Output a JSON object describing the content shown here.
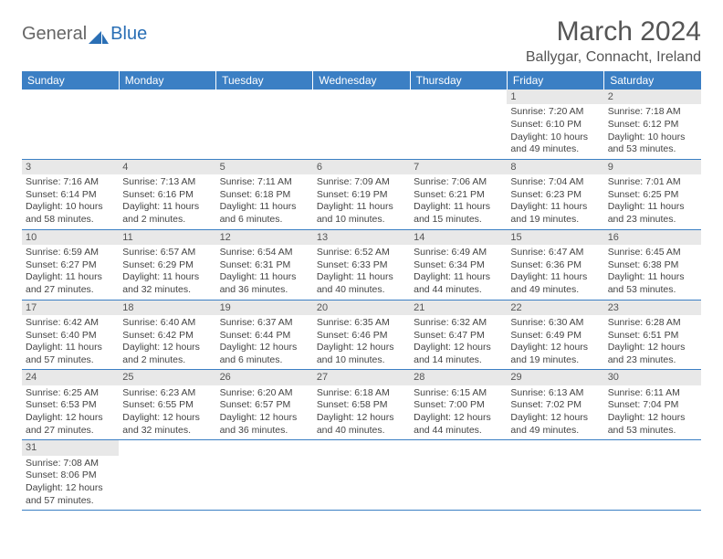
{
  "logo": {
    "part1": "General",
    "part2": "Blue"
  },
  "title": "March 2024",
  "location": "Ballygar, Connacht, Ireland",
  "colors": {
    "header_bg": "#3b7fc4",
    "header_text": "#ffffff",
    "daynum_bg": "#e8e8e8",
    "border": "#3b7fc4",
    "logo_blue": "#2a6fb5",
    "text": "#444444"
  },
  "weekdays": [
    "Sunday",
    "Monday",
    "Tuesday",
    "Wednesday",
    "Thursday",
    "Friday",
    "Saturday"
  ],
  "weeks": [
    [
      null,
      null,
      null,
      null,
      null,
      {
        "n": "1",
        "sr": "Sunrise: 7:20 AM",
        "ss": "Sunset: 6:10 PM",
        "d1": "Daylight: 10 hours",
        "d2": "and 49 minutes."
      },
      {
        "n": "2",
        "sr": "Sunrise: 7:18 AM",
        "ss": "Sunset: 6:12 PM",
        "d1": "Daylight: 10 hours",
        "d2": "and 53 minutes."
      }
    ],
    [
      {
        "n": "3",
        "sr": "Sunrise: 7:16 AM",
        "ss": "Sunset: 6:14 PM",
        "d1": "Daylight: 10 hours",
        "d2": "and 58 minutes."
      },
      {
        "n": "4",
        "sr": "Sunrise: 7:13 AM",
        "ss": "Sunset: 6:16 PM",
        "d1": "Daylight: 11 hours",
        "d2": "and 2 minutes."
      },
      {
        "n": "5",
        "sr": "Sunrise: 7:11 AM",
        "ss": "Sunset: 6:18 PM",
        "d1": "Daylight: 11 hours",
        "d2": "and 6 minutes."
      },
      {
        "n": "6",
        "sr": "Sunrise: 7:09 AM",
        "ss": "Sunset: 6:19 PM",
        "d1": "Daylight: 11 hours",
        "d2": "and 10 minutes."
      },
      {
        "n": "7",
        "sr": "Sunrise: 7:06 AM",
        "ss": "Sunset: 6:21 PM",
        "d1": "Daylight: 11 hours",
        "d2": "and 15 minutes."
      },
      {
        "n": "8",
        "sr": "Sunrise: 7:04 AM",
        "ss": "Sunset: 6:23 PM",
        "d1": "Daylight: 11 hours",
        "d2": "and 19 minutes."
      },
      {
        "n": "9",
        "sr": "Sunrise: 7:01 AM",
        "ss": "Sunset: 6:25 PM",
        "d1": "Daylight: 11 hours",
        "d2": "and 23 minutes."
      }
    ],
    [
      {
        "n": "10",
        "sr": "Sunrise: 6:59 AM",
        "ss": "Sunset: 6:27 PM",
        "d1": "Daylight: 11 hours",
        "d2": "and 27 minutes."
      },
      {
        "n": "11",
        "sr": "Sunrise: 6:57 AM",
        "ss": "Sunset: 6:29 PM",
        "d1": "Daylight: 11 hours",
        "d2": "and 32 minutes."
      },
      {
        "n": "12",
        "sr": "Sunrise: 6:54 AM",
        "ss": "Sunset: 6:31 PM",
        "d1": "Daylight: 11 hours",
        "d2": "and 36 minutes."
      },
      {
        "n": "13",
        "sr": "Sunrise: 6:52 AM",
        "ss": "Sunset: 6:33 PM",
        "d1": "Daylight: 11 hours",
        "d2": "and 40 minutes."
      },
      {
        "n": "14",
        "sr": "Sunrise: 6:49 AM",
        "ss": "Sunset: 6:34 PM",
        "d1": "Daylight: 11 hours",
        "d2": "and 44 minutes."
      },
      {
        "n": "15",
        "sr": "Sunrise: 6:47 AM",
        "ss": "Sunset: 6:36 PM",
        "d1": "Daylight: 11 hours",
        "d2": "and 49 minutes."
      },
      {
        "n": "16",
        "sr": "Sunrise: 6:45 AM",
        "ss": "Sunset: 6:38 PM",
        "d1": "Daylight: 11 hours",
        "d2": "and 53 minutes."
      }
    ],
    [
      {
        "n": "17",
        "sr": "Sunrise: 6:42 AM",
        "ss": "Sunset: 6:40 PM",
        "d1": "Daylight: 11 hours",
        "d2": "and 57 minutes."
      },
      {
        "n": "18",
        "sr": "Sunrise: 6:40 AM",
        "ss": "Sunset: 6:42 PM",
        "d1": "Daylight: 12 hours",
        "d2": "and 2 minutes."
      },
      {
        "n": "19",
        "sr": "Sunrise: 6:37 AM",
        "ss": "Sunset: 6:44 PM",
        "d1": "Daylight: 12 hours",
        "d2": "and 6 minutes."
      },
      {
        "n": "20",
        "sr": "Sunrise: 6:35 AM",
        "ss": "Sunset: 6:46 PM",
        "d1": "Daylight: 12 hours",
        "d2": "and 10 minutes."
      },
      {
        "n": "21",
        "sr": "Sunrise: 6:32 AM",
        "ss": "Sunset: 6:47 PM",
        "d1": "Daylight: 12 hours",
        "d2": "and 14 minutes."
      },
      {
        "n": "22",
        "sr": "Sunrise: 6:30 AM",
        "ss": "Sunset: 6:49 PM",
        "d1": "Daylight: 12 hours",
        "d2": "and 19 minutes."
      },
      {
        "n": "23",
        "sr": "Sunrise: 6:28 AM",
        "ss": "Sunset: 6:51 PM",
        "d1": "Daylight: 12 hours",
        "d2": "and 23 minutes."
      }
    ],
    [
      {
        "n": "24",
        "sr": "Sunrise: 6:25 AM",
        "ss": "Sunset: 6:53 PM",
        "d1": "Daylight: 12 hours",
        "d2": "and 27 minutes."
      },
      {
        "n": "25",
        "sr": "Sunrise: 6:23 AM",
        "ss": "Sunset: 6:55 PM",
        "d1": "Daylight: 12 hours",
        "d2": "and 32 minutes."
      },
      {
        "n": "26",
        "sr": "Sunrise: 6:20 AM",
        "ss": "Sunset: 6:57 PM",
        "d1": "Daylight: 12 hours",
        "d2": "and 36 minutes."
      },
      {
        "n": "27",
        "sr": "Sunrise: 6:18 AM",
        "ss": "Sunset: 6:58 PM",
        "d1": "Daylight: 12 hours",
        "d2": "and 40 minutes."
      },
      {
        "n": "28",
        "sr": "Sunrise: 6:15 AM",
        "ss": "Sunset: 7:00 PM",
        "d1": "Daylight: 12 hours",
        "d2": "and 44 minutes."
      },
      {
        "n": "29",
        "sr": "Sunrise: 6:13 AM",
        "ss": "Sunset: 7:02 PM",
        "d1": "Daylight: 12 hours",
        "d2": "and 49 minutes."
      },
      {
        "n": "30",
        "sr": "Sunrise: 6:11 AM",
        "ss": "Sunset: 7:04 PM",
        "d1": "Daylight: 12 hours",
        "d2": "and 53 minutes."
      }
    ],
    [
      {
        "n": "31",
        "sr": "Sunrise: 7:08 AM",
        "ss": "Sunset: 8:06 PM",
        "d1": "Daylight: 12 hours",
        "d2": "and 57 minutes."
      },
      null,
      null,
      null,
      null,
      null,
      null
    ]
  ]
}
